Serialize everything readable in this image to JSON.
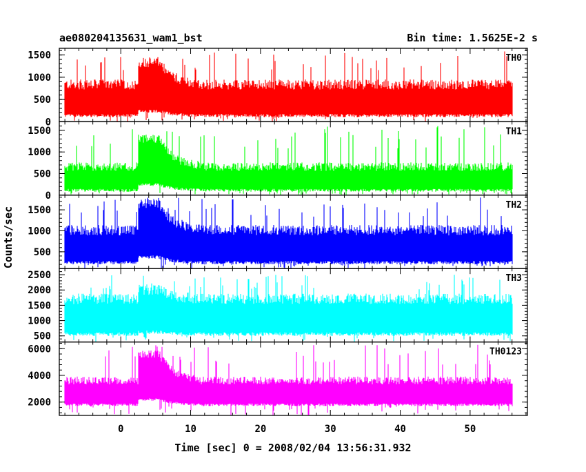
{
  "chart_data": {
    "type": "line",
    "title": "ae080204135631_wam1_bst",
    "subtitle": "Bin time: 1.5625E-2 s",
    "xlabel": "Time [sec] 0 = 2008/02/04 13:56:31.932",
    "ylabel": "Counts/sec",
    "xlim": [
      -8.8,
      58.2
    ],
    "xticks": [
      0,
      10,
      20,
      30,
      40,
      50
    ],
    "x_data_range": [
      -8,
      56
    ],
    "grid": false,
    "panels": [
      {
        "name": "TH0",
        "color": "#ff0000",
        "ylim": [
          0,
          1650
        ],
        "yticks": [
          0,
          500,
          1000,
          1500
        ],
        "baseline": 600,
        "spread": 250,
        "peak_level": 1100,
        "floor": 100,
        "spike_max": 1600,
        "burst_start": 2.5
      },
      {
        "name": "TH1",
        "color": "#00ff00",
        "ylim": [
          0,
          1700
        ],
        "yticks": [
          0,
          500,
          1000,
          1500
        ],
        "baseline": 450,
        "spread": 220,
        "peak_level": 1100,
        "floor": 80,
        "spike_max": 1600,
        "burst_start": 2.5
      },
      {
        "name": "TH2",
        "color": "#0000ff",
        "ylim": [
          100,
          1850
        ],
        "yticks": [
          500,
          1000,
          1500
        ],
        "baseline": 750,
        "spread": 280,
        "peak_level": 1400,
        "floor": 200,
        "spike_max": 1800,
        "burst_start": 2.5
      },
      {
        "name": "TH3",
        "color": "#00ffff",
        "ylim": [
          300,
          2700
        ],
        "yticks": [
          500,
          1000,
          1500,
          2000,
          2500
        ],
        "baseline": 1350,
        "spread": 380,
        "peak_level": 1650,
        "floor": 500,
        "spike_max": 2500,
        "burst_start": 2.5
      },
      {
        "name": "TH0123",
        "color": "#ff00ff",
        "ylim": [
          1000,
          6500
        ],
        "yticks": [
          2000,
          4000,
          6000
        ],
        "baseline": 3000,
        "spread": 650,
        "peak_level": 5000,
        "floor": 1700,
        "spike_max": 6300,
        "burst_start": 2.5
      }
    ]
  }
}
